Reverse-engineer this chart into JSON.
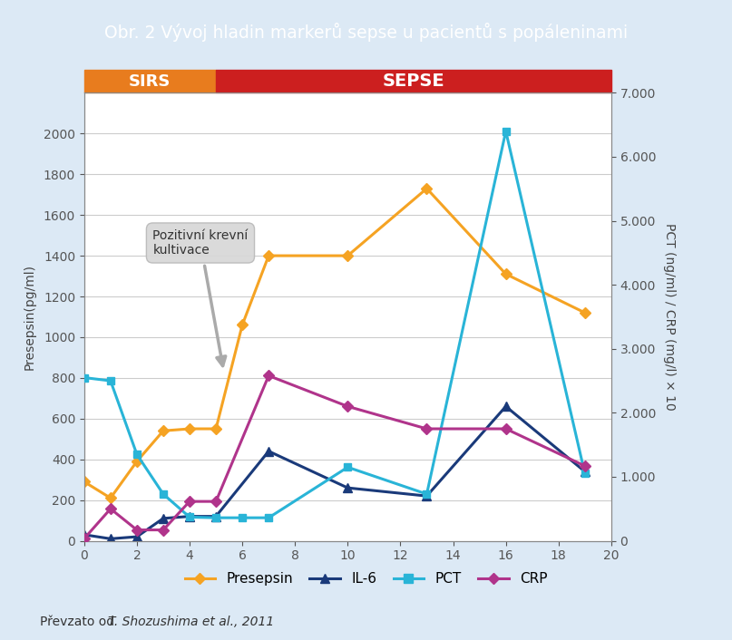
{
  "title": "Obr. 2 Vývoj hladin markerů sepse u pacientů s popáleninami",
  "title_bg": "#5b9bd5",
  "title_color": "#ffffff",
  "bg_color": "#dce9f5",
  "plot_bg": "#ffffff",
  "sirs_label": "SIRS",
  "sirs_color": "#e87c1e",
  "sepse_label": "SEPSE",
  "sepse_color": "#cc1f1f",
  "ylabel_left": "Presepsin(pg/ml)",
  "ylabel_right": "PCT (ng/ml) / CRP (mg/l) × 10",
  "xlim": [
    0,
    20
  ],
  "ylim_left": [
    0,
    2200
  ],
  "ylim_right": [
    0,
    7000
  ],
  "x_ticks": [
    0,
    2,
    4,
    6,
    8,
    10,
    12,
    14,
    16,
    18,
    20
  ],
  "y_ticks_left": [
    0,
    200,
    400,
    600,
    800,
    1000,
    1200,
    1400,
    1600,
    1800,
    2000
  ],
  "right_yticks": [
    0,
    1000,
    2000,
    3000,
    4000,
    5000,
    6000,
    7000
  ],
  "right_yticklabels": [
    "0",
    "1.000",
    "2.000",
    "3.000",
    "4.000",
    "5.000",
    "6.000",
    "7.000"
  ],
  "presepsin_x": [
    0,
    1,
    2,
    3,
    4,
    5,
    6,
    7,
    10,
    13,
    16,
    19
  ],
  "presepsin_y": [
    290,
    210,
    390,
    540,
    550,
    550,
    1060,
    1400,
    1400,
    1730,
    1310,
    1120
  ],
  "presepsin_color": "#f5a323",
  "presepsin_label": "Presepsin",
  "il6_x": [
    0,
    1,
    2,
    3,
    4,
    5,
    7,
    10,
    13,
    16,
    19
  ],
  "il6_y": [
    30,
    10,
    20,
    110,
    120,
    120,
    440,
    260,
    220,
    660,
    340
  ],
  "il6_color": "#1a3a7a",
  "il6_label": "IL-6",
  "pct_x": [
    0,
    1,
    2,
    3,
    4,
    5,
    6,
    7,
    10,
    13,
    16,
    19
  ],
  "pct_y": [
    2550,
    2500,
    1350,
    730,
    370,
    360,
    360,
    360,
    1150,
    730,
    6400,
    1050
  ],
  "pct_color": "#29b4d7",
  "pct_label": "PCT",
  "crp_x": [
    0,
    1,
    2,
    3,
    4,
    5,
    7,
    10,
    13,
    16,
    19
  ],
  "crp_y": [
    35,
    500,
    170,
    170,
    615,
    615,
    2580,
    2100,
    1750,
    1750,
    1170
  ],
  "crp_color": "#b0348b",
  "crp_label": "CRP",
  "annotation_text": "Pozitivní krevní\nkultivace",
  "footer_normal": "Převzato od  ",
  "footer_italic": "T. Shozushima et al., 2011"
}
